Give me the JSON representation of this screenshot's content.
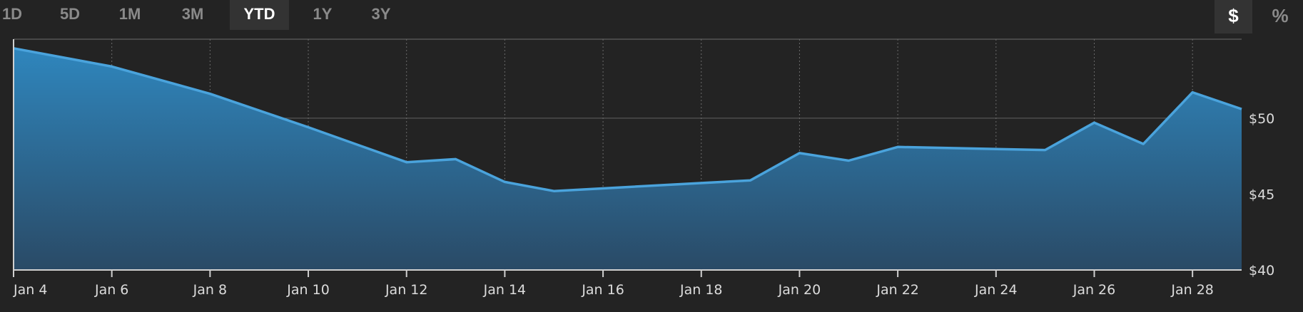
{
  "range_buttons": [
    {
      "label": "1D",
      "active": false
    },
    {
      "label": "5D",
      "active": false
    },
    {
      "label": "1M",
      "active": false
    },
    {
      "label": "3M",
      "active": false
    },
    {
      "label": "YTD",
      "active": true
    },
    {
      "label": "1Y",
      "active": false
    },
    {
      "label": "3Y",
      "active": false
    }
  ],
  "unit_toggle": {
    "dollar_label": "$",
    "percent_label": "%",
    "active": "dollar"
  },
  "colors": {
    "background": "#232323",
    "line": "#4aa3dc",
    "area_top": "#2f86bd",
    "area_bottom": "#2a4a66",
    "grid": "#555555",
    "axis": "#d0d0d0"
  },
  "chart_data": {
    "type": "area",
    "x": [
      "Jan 4",
      "Jan 6",
      "Jan 8",
      "Jan 10",
      "Jan 12",
      "Jan 13",
      "Jan 14",
      "Jan 15",
      "Jan 19",
      "Jan 20",
      "Jan 21",
      "Jan 22",
      "Jan 25",
      "Jan 26",
      "Jan 27",
      "Jan 28",
      "Jan 29"
    ],
    "y": [
      54.6,
      53.4,
      51.6,
      49.4,
      47.1,
      47.3,
      45.8,
      45.2,
      45.9,
      47.7,
      47.2,
      48.1,
      47.9,
      49.7,
      48.3,
      51.7,
      50.6
    ],
    "x_tick_labels": [
      "Jan 4",
      "Jan 6",
      "Jan 8",
      "Jan 10",
      "Jan 12",
      "Jan 14",
      "Jan 16",
      "Jan 18",
      "Jan 20",
      "Jan 22",
      "Jan 24",
      "Jan 26",
      "Jan 28"
    ],
    "y_ticks": [
      40,
      45,
      50
    ],
    "y_tick_labels": [
      "$40",
      "$45",
      "$50"
    ],
    "ylim": [
      40,
      55.2
    ],
    "xlim": [
      "Jan 4",
      "Jan 29"
    ],
    "grid": {
      "x": "dotted",
      "y": "solid"
    },
    "y_axis_side": "right",
    "title": "",
    "xlabel": "",
    "ylabel": ""
  }
}
